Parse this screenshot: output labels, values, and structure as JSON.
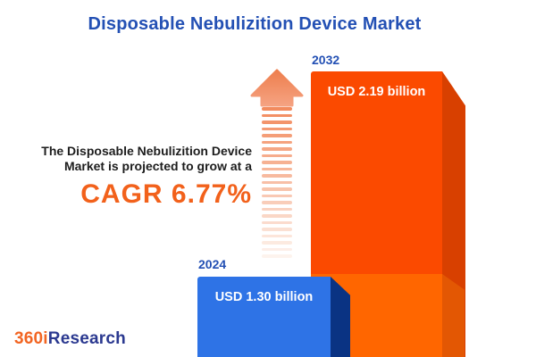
{
  "title": "Disposable Nebulizition Device Market",
  "summary": {
    "line1": "The Disposable Nebulizition Device",
    "line2": "Market is projected to grow at a",
    "cagr_label": "CAGR 6.77%"
  },
  "logo": {
    "prefix": "360i",
    "suffix": "Research"
  },
  "colors": {
    "title_blue": "#2350b4",
    "text_dark": "#1d1d1d",
    "cagr_orange": "#f2611b",
    "bar2024_face": "#2e73e6",
    "bar2024_side": "#0a3383",
    "bar2032_face": "#fb4a00",
    "bar2032_side": "#d84000",
    "echo_face": "#ff6600",
    "echo_side": "#e35703",
    "arrow_head_top": "#ee7f4e",
    "arrow_head_bottom": "#f5a281",
    "dash_start": "#f28b5e",
    "dash_end": "#fdf3ed",
    "logo_orange": "#f26522",
    "logo_navy": "#2b3990",
    "value_text": "#ffffff"
  },
  "chart_data": {
    "type": "bar",
    "title": "Disposable Nebulizition Device Market",
    "categories": [
      "2024",
      "2032"
    ],
    "values": [
      1.3,
      2.19
    ],
    "unit": "USD billion",
    "value_labels": [
      "USD 1.30 billion",
      "USD 2.19 billion"
    ],
    "growth_metric": "CAGR 6.77%",
    "cagr_percent": 6.77,
    "series_colors": [
      "#2e73e6",
      "#fb4a00"
    ],
    "legend": "none",
    "axes": "none",
    "style": "3d-cuboid-infographic"
  }
}
